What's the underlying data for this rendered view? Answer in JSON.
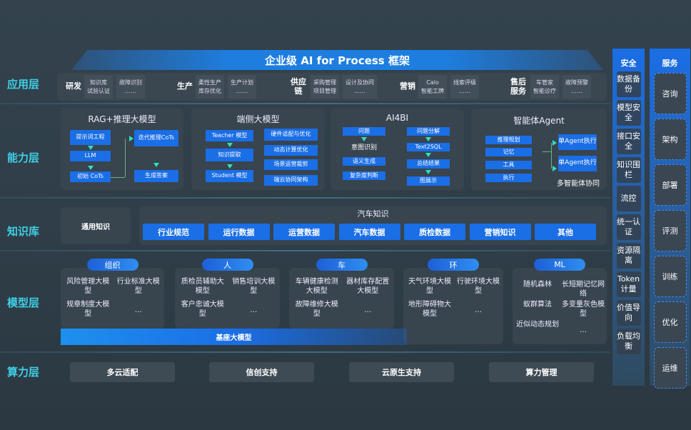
{
  "title": "企业级 AI for Process 框架",
  "layers": {
    "app": "应用层",
    "capability": "能力层",
    "knowledge": "知识库",
    "model": "模型层",
    "compute": "算力层"
  },
  "app_groups": [
    {
      "name": "研发",
      "cols": [
        [
          "知识库",
          "试验认证"
        ],
        [
          "故障识别",
          "……"
        ]
      ]
    },
    {
      "name": "生产",
      "cols": [
        [
          "柔性生产",
          "库存优化"
        ],
        [
          "生产计划",
          "……"
        ]
      ]
    },
    {
      "name": "供应链",
      "cols": [
        [
          "采购管理",
          "项目管理"
        ],
        [
          "设计及协同",
          "……"
        ]
      ]
    },
    {
      "name": "营销",
      "cols": [
        [
          "Calo",
          "智能工牌"
        ],
        [
          "线索评级",
          "……"
        ]
      ]
    },
    {
      "name": "售后服务",
      "cols": [
        [
          "车管家",
          "智能诊疗"
        ],
        [
          "故障预警",
          "……"
        ]
      ]
    }
  ],
  "capability": {
    "rag": {
      "title": "RAG+推理大模型",
      "items": [
        "提示词工程",
        "LLM",
        "初始 CoTs",
        "迭代推理CoTs",
        "生成答案"
      ]
    },
    "edge": {
      "title": "端侧大模型",
      "left": [
        "Teacher 模型",
        "知识提取",
        "Student 模型"
      ],
      "right": [
        "硬件适配与优化",
        "动态计算优化",
        "场景运营裁剪",
        "端云协同架构"
      ]
    },
    "ai4bi": {
      "title": "AI4BI",
      "left": [
        "问题",
        "意图识别",
        "语义生成",
        "复杂度判断"
      ],
      "right": [
        "问题分解",
        "Text2SQL",
        "总结结果",
        "图展示"
      ]
    },
    "agent": {
      "title": "智能体Agent",
      "left": [
        "推理规划",
        "记忆",
        "工具",
        "执行"
      ],
      "right": [
        "单Agent执行",
        "单Agent执行"
      ],
      "footer": "多智能体协同"
    }
  },
  "knowledge": {
    "general": "通用知识",
    "auto_title": "汽车知识",
    "items": [
      "行业规范",
      "运行数据",
      "运营数据",
      "汽车数据",
      "质检数据",
      "营销知识",
      "其他"
    ]
  },
  "models": [
    {
      "tag": "组织",
      "items": [
        "风险管理大模型",
        "行业标准大模型",
        "规章制度大模型",
        "…"
      ]
    },
    {
      "tag": "人",
      "items": [
        "质检员辅助大模型",
        "销售培训大模型",
        "客户忠诚大模型",
        "…"
      ]
    },
    {
      "tag": "车",
      "items": [
        "车辆健康检测大模型",
        "器材库存配置大模型",
        "故障维修大模型",
        "…"
      ]
    },
    {
      "tag": "环",
      "items": [
        "天气环境大模型",
        "行驶环境大模型",
        "地形障碍物大模型",
        "…"
      ]
    },
    {
      "tag": "ML",
      "items": [
        "随机森林",
        "长短期记忆网络",
        "蚁群算法",
        "多变量灰色模型",
        "近似动态规划",
        "…"
      ]
    }
  ],
  "base_model": "基座大模型",
  "compute": [
    "多云适配",
    "信创支持",
    "云原生支持",
    "算力管理"
  ],
  "security": {
    "title": "安全",
    "items": [
      "数据备份",
      "模型安全",
      "接口安全",
      "知识围栏",
      "流控",
      "统一认证",
      "资源隔离",
      "Token计量",
      "价值导向",
      "负载均衡"
    ]
  },
  "service": {
    "title": "服务",
    "items": [
      "咨询",
      "架构",
      "部署",
      "评测",
      "训练",
      "优化",
      "运维"
    ]
  }
}
